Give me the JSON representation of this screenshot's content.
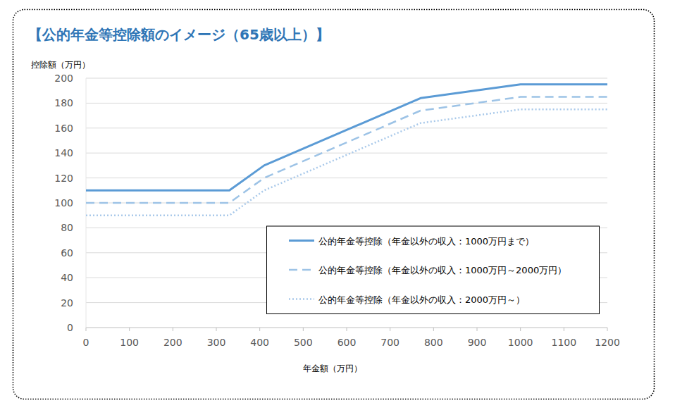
{
  "chart_data": {
    "type": "line",
    "title": "【公的年金等控除額のイメージ（65歳以上）】",
    "y_label": "控除額（万円）",
    "x_label": "年金額（万円）",
    "x": [
      0,
      330,
      410,
      770,
      1000,
      1200
    ],
    "series": [
      {
        "name": "公的年金等控除（年金以外の収入：1000万円まで）",
        "color": "#5b9bd5",
        "line_style": "solid",
        "values": [
          110,
          110,
          130,
          184,
          195,
          195
        ]
      },
      {
        "name": "公的年金等控除（年金以外の収入：1000万円～2000万円）",
        "color": "#9dc3e6",
        "line_style": "dashed",
        "values": [
          100,
          100,
          120,
          174,
          185,
          185
        ]
      },
      {
        "name": "公的年金等控除（年金以外の収入：2000万円～）",
        "color": "#a9c9ea",
        "line_style": "dotted",
        "values": [
          90,
          90,
          110,
          164,
          175,
          175
        ]
      }
    ],
    "xlim": [
      0,
      1200
    ],
    "xticks": [
      0,
      100,
      200,
      300,
      400,
      500,
      600,
      700,
      800,
      900,
      1000,
      1100,
      1200
    ],
    "ylim": [
      0,
      200
    ],
    "yticks": [
      0,
      20,
      40,
      60,
      80,
      100,
      120,
      140,
      160,
      180,
      200
    ],
    "grid": true,
    "legend": "lower right"
  }
}
